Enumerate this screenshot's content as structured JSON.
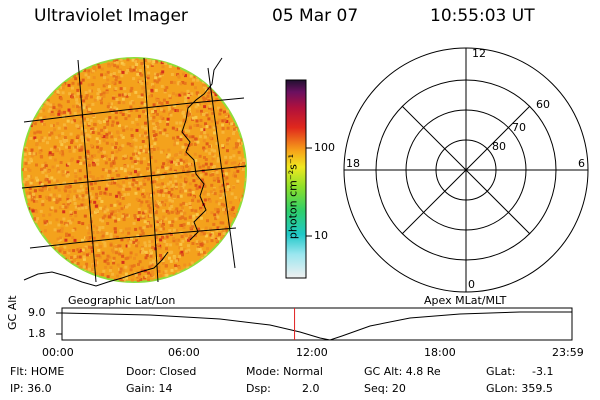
{
  "header": {
    "app_title": "Ultraviolet Imager",
    "date": "05 Mar 07",
    "time": "10:55:03 UT"
  },
  "left_panel": {
    "label": "Geographic Lat/Lon"
  },
  "right_panel": {
    "label": "Apex MLat/MLT",
    "mlt_labels": {
      "top": "12",
      "right": "6",
      "bottom": "0",
      "left": "18"
    },
    "lat_labels": [
      "60",
      "70",
      "80"
    ]
  },
  "colorbar": {
    "unit_label": "photon cm⁻²s⁻¹",
    "tick_labels": [
      "100",
      "10"
    ]
  },
  "timeline": {
    "axis_label": "GC Alt",
    "y_ticks": [
      "9.0",
      "1.8"
    ],
    "x_ticks": [
      "00:00",
      "06:00",
      "12:00",
      "18:00",
      "23:59"
    ],
    "current_time_fraction": 0.456
  },
  "status": {
    "flt": "Flt: HOME",
    "ip": "IP: 36.0",
    "door": "Door: Closed",
    "gain": "Gain: 14",
    "mode": "Mode: Normal",
    "dsp_key": "Dsp:",
    "dsp_val": "2.0",
    "gc_alt": "GC Alt: 4.8 Re",
    "seq": "Seq: 20",
    "glat_key": "GLat:",
    "glat_val": "-3.1",
    "glon": "GLon: 359.5"
  },
  "colors": {
    "disk_base": "#f4a21c",
    "disk_rim": "#8ede3a",
    "marker": "#e02020"
  }
}
